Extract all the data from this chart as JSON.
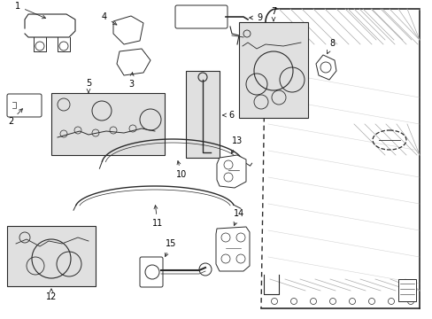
{
  "bg_color": "#ffffff",
  "line_color": "#2a2a2a",
  "light_gray": "#aaaaaa",
  "fill_gray": "#e0e0e0",
  "figsize": [
    4.89,
    3.6
  ],
  "dpi": 100
}
